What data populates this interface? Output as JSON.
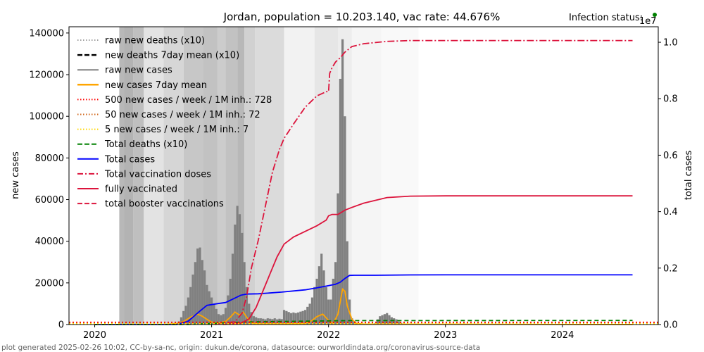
{
  "chart_data": {
    "type": "line",
    "title": "Jordan, population = 10.203.140, vac rate: 44.676%",
    "status_label": "Infection status:",
    "status_color": "#008000",
    "xlabel": "",
    "ylabel": "new cases",
    "y2label": "total cases",
    "y2_multiplier": "1e7",
    "footer": "plot generated 2025-02-26 10:02, CC-by-sa-nc, origin: dukun.de/corona, datasource: ourworldindata.org/coronavirus-source-data",
    "grid": false,
    "legend_position": "top-left",
    "x_range": [
      2019.78,
      2024.82
    ],
    "x_ticks": [
      {
        "value": 2020,
        "label": "2020"
      },
      {
        "value": 2021,
        "label": "2021"
      },
      {
        "value": 2022,
        "label": "2022"
      },
      {
        "value": 2023,
        "label": "2023"
      },
      {
        "value": 2024,
        "label": "2024"
      }
    ],
    "ylim": [
      0,
      143000
    ],
    "y_ticks": [
      {
        "value": 0,
        "label": "0"
      },
      {
        "value": 20000,
        "label": "20000"
      },
      {
        "value": 40000,
        "label": "40000"
      },
      {
        "value": 60000,
        "label": "60000"
      },
      {
        "value": 80000,
        "label": "80000"
      },
      {
        "value": 100000,
        "label": "100000"
      },
      {
        "value": 120000,
        "label": "120000"
      },
      {
        "value": 140000,
        "label": "140000"
      }
    ],
    "y2lim": [
      0,
      1.055
    ],
    "y2_ticks": [
      {
        "value": 0.0,
        "label": "0.0"
      },
      {
        "value": 0.2,
        "label": "0.2"
      },
      {
        "value": 0.4,
        "label": "0.4"
      },
      {
        "value": 0.6,
        "label": "0.6"
      },
      {
        "value": 0.8,
        "label": "0.8"
      },
      {
        "value": 1.0,
        "label": "1.0"
      }
    ],
    "legend": [
      {
        "label": "raw new deaths (x10)",
        "color": "#808080",
        "style": "dotted",
        "width": 1.5
      },
      {
        "label": "new deaths 7day mean (x10)",
        "color": "#000000",
        "style": "dashed",
        "width": 2.5
      },
      {
        "label": "raw new cases",
        "color": "#808080",
        "style": "solid",
        "width": 2
      },
      {
        "label": "new cases 7day mean",
        "color": "#ffa500",
        "style": "solid",
        "width": 2.5
      },
      {
        "label": "500 new cases / week / 1M inh.: 728",
        "color": "#ff0000",
        "style": "dotted",
        "width": 2
      },
      {
        "label": "50 new cases / week / 1M inh.: 72",
        "color": "#d2691e",
        "style": "dotted",
        "width": 2
      },
      {
        "label": "5 new cases / week / 1M inh.: 7",
        "color": "#ffd700",
        "style": "dotted",
        "width": 2
      },
      {
        "label": "Total deaths (x10)",
        "color": "#008000",
        "style": "dashed",
        "width": 2
      },
      {
        "label": "Total cases",
        "color": "#0000ff",
        "style": "solid",
        "width": 2
      },
      {
        "label": "Total vaccination doses",
        "color": "#dc143c",
        "style": "dashdot",
        "width": 2
      },
      {
        "label": "fully vaccinated",
        "color": "#dc143c",
        "style": "solid",
        "width": 2
      },
      {
        "label": "total booster vaccinations",
        "color": "#dc143c",
        "style": "dashed",
        "width": 2
      }
    ],
    "background_bands": [
      {
        "x0": 2020.21,
        "x1": 2020.25,
        "gray": 0.72
      },
      {
        "x0": 2020.25,
        "x1": 2020.33,
        "gray": 0.7
      },
      {
        "x0": 2020.33,
        "x1": 2020.42,
        "gray": 0.75
      },
      {
        "x0": 2020.42,
        "x1": 2020.59,
        "gray": 0.89
      },
      {
        "x0": 2020.59,
        "x1": 2020.76,
        "gray": 0.84
      },
      {
        "x0": 2020.76,
        "x1": 2020.93,
        "gray": 0.78
      },
      {
        "x0": 2020.93,
        "x1": 2021.05,
        "gray": 0.76
      },
      {
        "x0": 2021.05,
        "x1": 2021.12,
        "gray": 0.8
      },
      {
        "x0": 2021.12,
        "x1": 2021.22,
        "gray": 0.76
      },
      {
        "x0": 2021.22,
        "x1": 2021.28,
        "gray": 0.72
      },
      {
        "x0": 2021.28,
        "x1": 2021.37,
        "gray": 0.82
      },
      {
        "x0": 2021.37,
        "x1": 2021.62,
        "gray": 0.86
      },
      {
        "x0": 2021.62,
        "x1": 2021.88,
        "gray": 0.95
      },
      {
        "x0": 2021.88,
        "x1": 2022.08,
        "gray": 0.9
      },
      {
        "x0": 2022.08,
        "x1": 2022.2,
        "gray": 0.93
      },
      {
        "x0": 2022.2,
        "x1": 2022.45,
        "gray": 0.96
      },
      {
        "x0": 2022.45,
        "x1": 2022.77,
        "gray": 0.975
      }
    ],
    "series": [
      {
        "name": "raw new cases",
        "axis": "left",
        "kind": "bars",
        "color": "#808080",
        "x": [
          2020.72,
          2020.74,
          2020.76,
          2020.78,
          2020.8,
          2020.82,
          2020.84,
          2020.86,
          2020.88,
          2020.9,
          2020.92,
          2020.94,
          2020.96,
          2020.98,
          2021.0,
          2021.02,
          2021.04,
          2021.06,
          2021.08,
          2021.1,
          2021.12,
          2021.14,
          2021.16,
          2021.18,
          2021.2,
          2021.22,
          2021.24,
          2021.26,
          2021.28,
          2021.3,
          2021.32,
          2021.34,
          2021.36,
          2021.38,
          2021.4,
          2021.42,
          2021.44,
          2021.46,
          2021.48,
          2021.5,
          2021.52,
          2021.54,
          2021.56,
          2021.58,
          2021.6,
          2021.62,
          2021.64,
          2021.66,
          2021.68,
          2021.7,
          2021.72,
          2021.74,
          2021.76,
          2021.78,
          2021.8,
          2021.82,
          2021.84,
          2021.86,
          2021.88,
          2021.9,
          2021.92,
          2021.94,
          2021.96,
          2021.98,
          2022.0,
          2022.02,
          2022.04,
          2022.06,
          2022.08,
          2022.1,
          2022.12,
          2022.14,
          2022.16,
          2022.18,
          2022.2,
          2022.22,
          2022.24,
          2022.26,
          2022.28,
          2022.3,
          2022.4,
          2022.42,
          2022.44,
          2022.46,
          2022.48,
          2022.5,
          2022.52,
          2022.54,
          2022.56,
          2022.58,
          2022.6,
          2022.62
        ],
        "values": [
          1500,
          3500,
          6500,
          9000,
          13000,
          18000,
          24000,
          30000,
          36500,
          37000,
          31000,
          26000,
          19000,
          16000,
          13000,
          10000,
          7500,
          5000,
          4500,
          5000,
          8000,
          14000,
          22000,
          34000,
          48000,
          57000,
          53000,
          44000,
          30000,
          18000,
          10000,
          6000,
          4000,
          3500,
          3000,
          3000,
          2800,
          2500,
          3000,
          2800,
          2600,
          3000,
          2500,
          2800,
          2600,
          7000,
          6500,
          6000,
          5500,
          5800,
          5500,
          5800,
          6200,
          6500,
          7000,
          8500,
          10000,
          13000,
          18000,
          22000,
          28000,
          34000,
          26000,
          18000,
          12000,
          12000,
          22000,
          30000,
          63000,
          118000,
          137000,
          100000,
          40000,
          12000,
          3000,
          1500,
          800,
          500,
          300,
          200,
          600,
          2500,
          4000,
          4500,
          5000,
          5500,
          4500,
          3500,
          3000,
          2500,
          1500,
          800
        ]
      },
      {
        "name": "new cases 7day mean",
        "axis": "left",
        "kind": "line",
        "color": "#ffa500",
        "x": [
          2020.6,
          2020.7,
          2020.76,
          2020.82,
          2020.88,
          2020.92,
          2020.96,
          2021.0,
          2021.06,
          2021.12,
          2021.16,
          2021.2,
          2021.24,
          2021.27,
          2021.3,
          2021.34,
          2021.4,
          2021.6,
          2021.8,
          2021.86,
          2021.9,
          2021.95,
          2022.0,
          2022.04,
          2022.08,
          2022.1,
          2022.12,
          2022.14,
          2022.16,
          2022.2,
          2022.24,
          2022.3,
          2024.6
        ],
        "values": [
          0,
          500,
          1500,
          3500,
          5000,
          4000,
          2500,
          1200,
          800,
          1500,
          3500,
          6000,
          4500,
          6000,
          3500,
          800,
          300,
          300,
          500,
          2000,
          3800,
          5000,
          2000,
          500,
          5000,
          11000,
          17000,
          16000,
          9000,
          2500,
          500,
          200,
          0
        ]
      },
      {
        "name": "Total cases",
        "axis": "right",
        "kind": "line",
        "color": "#0000ff",
        "x": [
          2020.0,
          2020.7,
          2020.8,
          2020.9,
          2020.96,
          2021.05,
          2021.12,
          2021.18,
          2021.25,
          2021.3,
          2021.4,
          2021.6,
          2021.8,
          2021.9,
          2022.0,
          2022.06,
          2022.1,
          2022.14,
          2022.18,
          2022.22,
          2022.4,
          2022.7,
          2023.0,
          2024.6
        ],
        "values": [
          0,
          0,
          0.012,
          0.048,
          0.068,
          0.074,
          0.078,
          0.09,
          0.104,
          0.108,
          0.109,
          0.115,
          0.123,
          0.13,
          0.138,
          0.143,
          0.15,
          0.163,
          0.174,
          0.1745,
          0.1745,
          0.1758,
          0.176,
          0.1762
        ]
      },
      {
        "name": "Total deaths (x10)",
        "axis": "right",
        "kind": "line",
        "color": "#008000",
        "dash": "6,4",
        "x": [
          2020.0,
          2020.8,
          2020.96,
          2021.1,
          2021.3,
          2021.6,
          2022.0,
          2022.2,
          2024.6
        ],
        "values": [
          0,
          0.0,
          0.003,
          0.006,
          0.009,
          0.011,
          0.013,
          0.014,
          0.0145
        ]
      },
      {
        "name": "Total vaccination doses",
        "axis": "right",
        "kind": "line",
        "color": "#dc143c",
        "dash": "10,3,2,3",
        "x": [
          2021.03,
          2021.2,
          2021.26,
          2021.3,
          2021.34,
          2021.4,
          2021.46,
          2021.52,
          2021.58,
          2021.62,
          2021.7,
          2021.8,
          2021.9,
          2021.98,
          2022.0,
          2022.01,
          2022.03,
          2022.06,
          2022.1,
          2022.14,
          2022.2,
          2022.3,
          2022.5,
          2022.7,
          2023.0,
          2024.6
        ],
        "values": [
          0,
          0.01,
          0.04,
          0.1,
          0.2,
          0.3,
          0.42,
          0.54,
          0.62,
          0.66,
          0.71,
          0.77,
          0.81,
          0.825,
          0.825,
          0.89,
          0.91,
          0.93,
          0.945,
          0.965,
          0.985,
          0.995,
          1.003,
          1.006,
          1.006,
          1.006
        ]
      },
      {
        "name": "fully vaccinated",
        "axis": "right",
        "kind": "line",
        "color": "#dc143c",
        "x": [
          2021.1,
          2021.25,
          2021.32,
          2021.38,
          2021.44,
          2021.5,
          2021.56,
          2021.62,
          2021.7,
          2021.8,
          2021.9,
          2021.98,
          2022.0,
          2022.03,
          2022.08,
          2022.14,
          2022.2,
          2022.3,
          2022.45,
          2022.5,
          2022.7,
          2023.0,
          2024.6
        ],
        "values": [
          0,
          0.005,
          0.02,
          0.06,
          0.12,
          0.18,
          0.24,
          0.285,
          0.31,
          0.33,
          0.35,
          0.37,
          0.385,
          0.39,
          0.39,
          0.405,
          0.415,
          0.43,
          0.445,
          0.45,
          0.455,
          0.456,
          0.456
        ]
      },
      {
        "name": "500 new cases / week / 1M inh.",
        "axis": "left",
        "kind": "hline",
        "color": "#ff0000",
        "value": 728
      },
      {
        "name": "50 new cases / week / 1M inh.",
        "axis": "left",
        "kind": "hline",
        "color": "#d2691e",
        "value": 72
      },
      {
        "name": "5 new cases / week / 1M inh.",
        "axis": "left",
        "kind": "hline",
        "color": "#ffd700",
        "value": 7
      }
    ]
  }
}
